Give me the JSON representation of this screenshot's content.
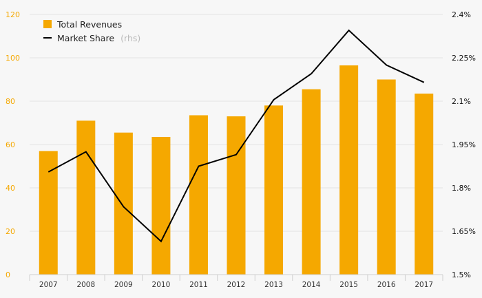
{
  "chart_data": {
    "type": "bar+line",
    "title": "",
    "xlabel": "",
    "ylabel": "",
    "categories": [
      "2007",
      "2008",
      "2009",
      "2010",
      "2011",
      "2012",
      "2013",
      "2014",
      "2015",
      "2016",
      "2017"
    ],
    "series": [
      {
        "name": "Total Revenues",
        "type": "bar",
        "axis": "left",
        "color": "#f5a800",
        "values": [
          57,
          71,
          65.5,
          63.5,
          73.5,
          73,
          78,
          85.5,
          96.5,
          90,
          83.5
        ]
      },
      {
        "name": "Market Share",
        "legend_note": "(rhs)",
        "type": "line",
        "axis": "right",
        "color": "#000000",
        "values": [
          1.855,
          1.925,
          1.735,
          1.615,
          1.875,
          1.915,
          2.105,
          2.195,
          2.345,
          2.225,
          2.165
        ]
      }
    ],
    "y_left": {
      "min": 0,
      "max": 120,
      "ticks": [
        0,
        20,
        40,
        60,
        80,
        100,
        120
      ],
      "tick_labels": [
        "0",
        "20",
        "40",
        "60",
        "80",
        "100",
        "120"
      ],
      "color": "#f5a800"
    },
    "y_right": {
      "min": 1.5,
      "max": 2.4,
      "ticks": [
        1.5,
        1.65,
        1.8,
        1.95,
        2.1,
        2.25,
        2.4
      ],
      "tick_labels": [
        "1.5%",
        "1.65%",
        "1.8%",
        "1.95%",
        "2.1%",
        "2.25%",
        "2.4%"
      ],
      "color": "#111111"
    },
    "grid": true,
    "legend_position": "top-left"
  }
}
